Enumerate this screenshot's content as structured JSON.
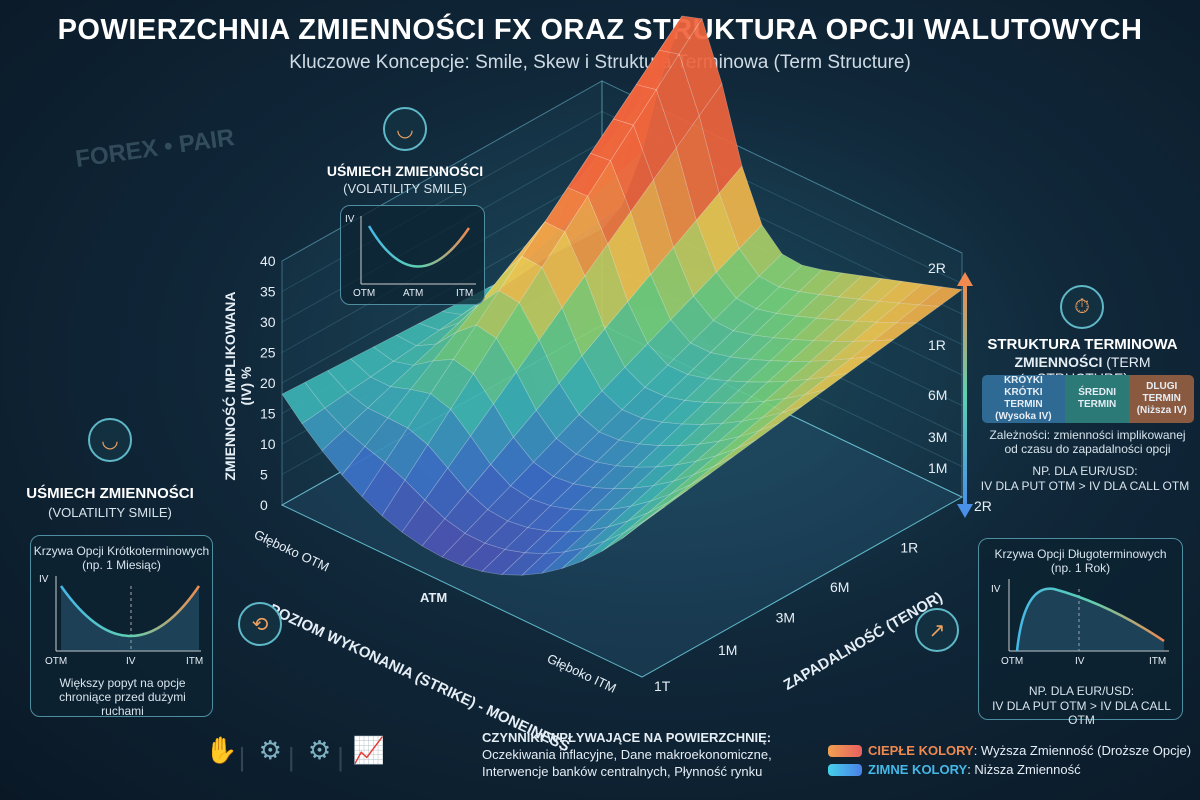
{
  "title": "POWIERZCHNIA ZMIENNOŚCI FX ORAZ STRUKTURA OPCJI WALUTOWYCH",
  "subtitle": "Kluczowe Koncepcje: Smile, Skew i Struktura Terminowa (Term Structure)",
  "background_label": "FOREX • PAIR",
  "top_smile": {
    "title": "UŚMIECH ZMIENNOŚCI",
    "subtitle": "(VOLATILITY SMILE)",
    "y_label": "IV",
    "x_labels": [
      "OTM",
      "ATM",
      "ITM"
    ]
  },
  "left_smile": {
    "title": "UŚMIECH ZMIENNOŚCI",
    "subtitle": "(VOLATILITY SMILE)",
    "panel_title": "Krzywa Opcji Krótkoterminowych",
    "panel_sub": "(np. 1 Miesiąc)",
    "y_label": "IV",
    "x_labels": [
      "OTM",
      "IV",
      "ITM"
    ],
    "note": "Większy popyt na opcje chroniące przed dużymi ruchami"
  },
  "surface": {
    "iv_axis_label": "ZMIENNOŚĆ IMPLIKOWANA (IV) %",
    "iv_ticks": [
      "0",
      "5",
      "10",
      "15",
      "20",
      "25",
      "30",
      "35",
      "40"
    ],
    "strike_axis_label": "POZIOM WYKONANIA (STRIKE) - MONEINESS",
    "strike_ticks": [
      "Głęboko OTM",
      "ATM",
      "Głęboko ITM"
    ],
    "tenor_axis_label": "ZAPADALNOŚĆ (TENOR)",
    "tenor_ticks": [
      "1T",
      "1M",
      "3M",
      "6M",
      "1R",
      "2R"
    ],
    "back_tenor_labels": [
      "2R",
      "1R",
      "6M",
      "3M",
      "1M"
    ]
  },
  "term": {
    "title": "STRUKTURA TERMINOWA",
    "title2": "ZMIENNOŚCI",
    "title2_light": "(TERM STRUCTURE)",
    "segments": [
      {
        "label": "KRÓYKI KRÓTKI TERMIN",
        "sub": "(Wysoka IV)",
        "color": "#2f6a95"
      },
      {
        "label": "ŚREDNI TERMIN",
        "sub": "",
        "color": "#2b7a78"
      },
      {
        "label": "DLUGI TERMIN",
        "sub": "(Niższa IV)",
        "color": "#8a5a40"
      }
    ],
    "desc": "Zależności: zmienności implikowanej od czasu do zapadalności opcji",
    "example1": "NP. DLA EUR/USD:",
    "example2": "IV DLA PUT OTM > IV DLA CALL OTM"
  },
  "long_panel": {
    "title": "Krzywa Opcji Długoterminowych",
    "sub": "(np. 1 Rok)",
    "y_label": "IV",
    "x_labels": [
      "OTM",
      "IV",
      "ITM"
    ],
    "example1": "NP. DLA EUR/USD:",
    "example2": "IV DLA PUT OTM > IV DLA CALL OTM"
  },
  "factors": {
    "title": "CZYNNIKI WPŁYWAJĄCE NA POWIERZCHNIĘ:",
    "line1": "Oczekiwania inflacyjne, Dane makroekonomiczne,",
    "line2": "Interwencje banków centralnych, Płynność rynku",
    "icons": [
      "hand-money-icon",
      "percent-gear-icon",
      "dollar-gear-icon",
      "growth-chart-icon"
    ]
  },
  "legend": [
    {
      "key": "CIEPŁE KOLORY",
      "text": ": Wyższa Zmienność (Droższe Opcje)",
      "color": "#f08a50"
    },
    {
      "key": "ZIMNE KOLORY",
      "text": ": Niższa Zmienność",
      "color": "#45b8e8"
    }
  ],
  "colors": {
    "low": "#5a3fa0",
    "mid": "#3fb8b0",
    "high": "#f07040"
  }
}
